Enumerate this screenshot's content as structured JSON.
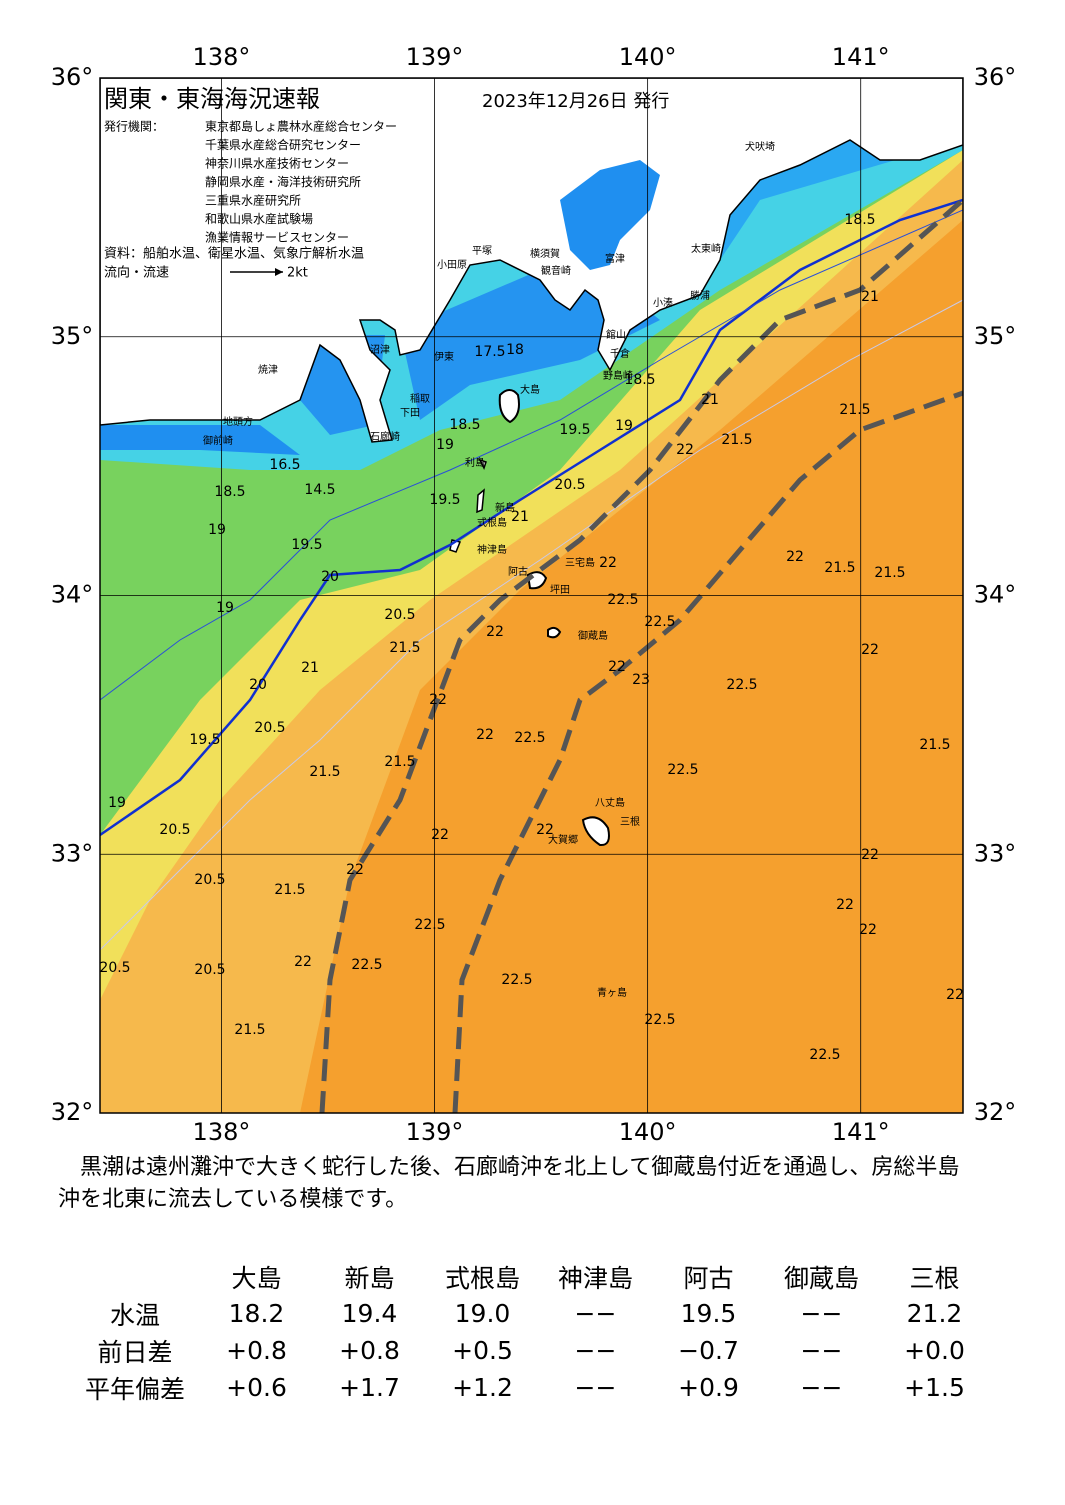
{
  "map": {
    "title": "関東・東海海況速報",
    "date": "2023年12月26日 発行",
    "publisher_label": "発行機関：",
    "publishers": [
      "東京都島しょ農林水産総合センター",
      "千葉県水産総合研究センター",
      "神奈川県水産技術センター",
      "静岡県水産・海洋技術研究所",
      "三重県水産研究所",
      "和歌山県水産試験場",
      "漁業情報サービスセンター"
    ],
    "source": "資料：船舶水温、衛星水温、気象庁解析水温",
    "current_legend": "流向・流速",
    "current_scale": "2kt",
    "xlim": [
      137.43,
      141.48
    ],
    "ylim": [
      32,
      36
    ],
    "xticks": [
      {
        "value": 138,
        "label": "138°"
      },
      {
        "value": 139,
        "label": "139°"
      },
      {
        "value": 140,
        "label": "140°"
      },
      {
        "value": 141,
        "label": "141°"
      }
    ],
    "yticks": [
      {
        "value": 32,
        "label": "32°"
      },
      {
        "value": 33,
        "label": "33°"
      },
      {
        "value": 34,
        "label": "34°"
      },
      {
        "value": 35,
        "label": "35°"
      },
      {
        "value": 36,
        "label": "36°"
      }
    ],
    "place_names": [
      "大島",
      "利島",
      "新島",
      "式根島",
      "神津島",
      "三宅島",
      "阿古",
      "坪田",
      "御蔵島",
      "八丈島",
      "三根",
      "大賀郷",
      "青ヶ島",
      "犬吠埼",
      "太東崎",
      "富津",
      "横須賀",
      "観音崎",
      "平塚",
      "小田原",
      "小湊",
      "勝浦",
      "館山",
      "千倉",
      "野島崎",
      "伊東",
      "稲取",
      "下田",
      "石廊崎",
      "沼津",
      "焼津",
      "御前崎",
      "地頭方"
    ],
    "contour_labels": [
      "16.5",
      "18.5",
      "19",
      "19.5",
      "20",
      "19",
      "20.5",
      "21.5",
      "21",
      "20",
      "20.5",
      "19.5",
      "21.5",
      "21.5",
      "20.5",
      "19",
      "22",
      "22",
      "20.5",
      "21.5",
      "22.5",
      "20.5",
      "20.5",
      "22.5",
      "22",
      "21.5",
      "22.5",
      "22.5",
      "22.5",
      "22",
      "22.5",
      "22",
      "22",
      "22",
      "22.5",
      "22",
      "22.5",
      "22",
      "22.5",
      "22.5",
      "23",
      "22",
      "21.5",
      "21.5",
      "22",
      "21.5",
      "22",
      "22",
      "22",
      "22",
      "21.5",
      "22",
      "21",
      "21",
      "21.5",
      "18.5",
      "19",
      "19.5",
      "18.5",
      "19",
      "19.5",
      "20.5",
      "21",
      "17.5",
      "18",
      "18.5",
      "14.5"
    ]
  },
  "description": "黒潮は遠州灘沖で大きく蛇行した後、石廊崎沖を北上して御蔵島付近を通過し、房総半島沖を北東に流去している模様です。",
  "table": {
    "columns": [
      "大島",
      "新島",
      "式根島",
      "神津島",
      "阿古",
      "御蔵島",
      "三根"
    ],
    "rows": [
      {
        "label": "水温",
        "values": [
          "18.2",
          "19.4",
          "19.0",
          "−−",
          "19.5",
          "−−",
          "21.2"
        ]
      },
      {
        "label": "前日差",
        "values": [
          "+0.8",
          "+0.8",
          "+0.5",
          "−−",
          "−0.7",
          "−−",
          "+0.0"
        ]
      },
      {
        "label": "平年偏差",
        "values": [
          "+0.6",
          "+1.7",
          "+1.2",
          "−−",
          "+0.9",
          "−−",
          "+1.5"
        ]
      }
    ]
  }
}
